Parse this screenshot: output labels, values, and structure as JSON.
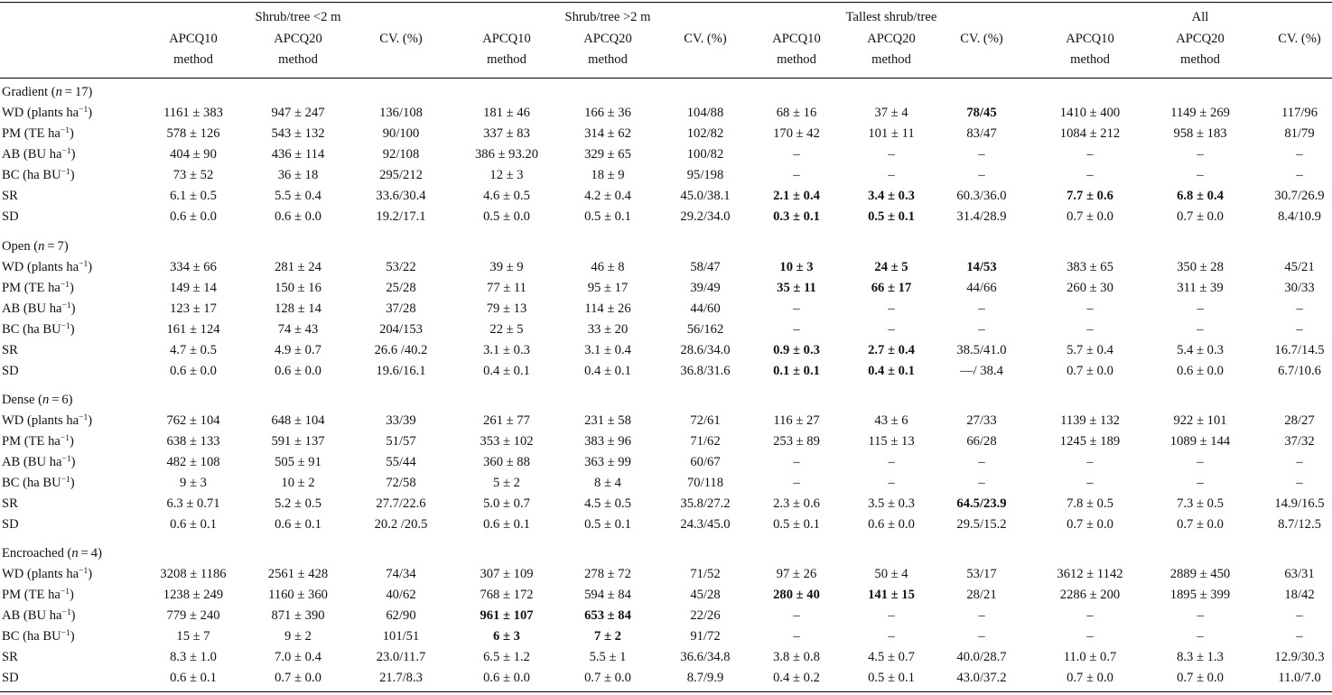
{
  "header": {
    "groups": [
      "Shrub/tree <2 m",
      "Shrub/tree >2 m",
      "Tallest shrub/tree",
      "All"
    ],
    "columns": [
      [
        "APCQ10",
        "method"
      ],
      [
        "APCQ20",
        "method"
      ],
      [
        "CV. (%)"
      ],
      [
        "APCQ10",
        "method"
      ],
      [
        "APCQ20",
        "method"
      ],
      [
        "CV. (%)"
      ],
      [
        "APCQ10",
        "method"
      ],
      [
        "APCQ20",
        "method"
      ],
      [
        "CV. (%)"
      ],
      [
        "APCQ10",
        "method"
      ],
      [
        "APCQ20",
        "method"
      ],
      [
        "CV. (%)"
      ]
    ]
  },
  "sections": [
    {
      "name": "Gradient",
      "n": "17",
      "rows": [
        {
          "label": "WD (plants ha",
          "unit_sup": "−1",
          "label_end": ")",
          "values": [
            "1161 ± 383",
            "947 ± 247",
            "136/108",
            "181 ± 46",
            "166 ± 36",
            "104/88",
            "68 ± 16",
            "37 ± 4",
            "78/45",
            "1410 ± 400",
            "1149 ± 269",
            "117/96"
          ],
          "bold": [
            8
          ]
        },
        {
          "label": "PM (TE ha",
          "unit_sup": "−1",
          "label_end": ")",
          "values": [
            "578 ± 126",
            "543 ± 132",
            "90/100",
            "337 ± 83",
            "314 ± 62",
            "102/82",
            "170 ± 42",
            "101 ± 11",
            "83/47",
            "1084 ± 212",
            "958 ± 183",
            "81/79"
          ],
          "bold": []
        },
        {
          "label": "AB (BU ha",
          "unit_sup": "−1",
          "label_end": ")",
          "values": [
            "404 ± 90",
            "436 ± 114",
            "92/108",
            "386 ± 93.20",
            "329 ± 65",
            "100/82",
            "–",
            "–",
            "–",
            "–",
            "–",
            "–"
          ],
          "bold": []
        },
        {
          "label": "BC (ha BU",
          "unit_sup": "−1",
          "label_end": ")",
          "values": [
            "73 ± 52",
            "36 ± 18",
            "295/212",
            "12 ± 3",
            "18 ± 9",
            "95/198",
            "–",
            "–",
            "–",
            "–",
            "–",
            "–"
          ],
          "bold": []
        },
        {
          "label": "SR",
          "unit_sup": "",
          "label_end": "",
          "values": [
            "6.1 ± 0.5",
            "5.5 ± 0.4",
            "33.6/30.4",
            "4.6 ± 0.5",
            "4.2 ± 0.4",
            "45.0/38.1",
            "2.1 ± 0.4",
            "3.4 ± 0.3",
            "60.3/36.0",
            "7.7 ± 0.6",
            "6.8 ± 0.4",
            "30.7/26.9"
          ],
          "bold": [
            6,
            7,
            9,
            10
          ]
        },
        {
          "label": "SD",
          "unit_sup": "",
          "label_end": "",
          "values": [
            "0.6 ± 0.0",
            "0.6 ± 0.0",
            "19.2/17.1",
            "0.5 ± 0.0",
            "0.5 ± 0.1",
            "29.2/34.0",
            "0.3 ± 0.1",
            "0.5 ± 0.1",
            "31.4/28.9",
            "0.7 ± 0.0",
            "0.7 ± 0.0",
            "8.4/10.9"
          ],
          "bold": [
            6,
            7
          ]
        }
      ]
    },
    {
      "name": "Open",
      "n": "7",
      "rows": [
        {
          "label": "WD (plants ha",
          "unit_sup": "−1",
          "label_end": ")",
          "values": [
            "334 ± 66",
            "281 ± 24",
            "53/22",
            "39 ± 9",
            "46 ± 8",
            "58/47",
            "10 ± 3",
            "24 ± 5",
            "14/53",
            "383 ± 65",
            "350 ± 28",
            "45/21"
          ],
          "bold": [
            6,
            7,
            8
          ]
        },
        {
          "label": "PM (TE ha",
          "unit_sup": "−1",
          "label_end": ")",
          "values": [
            "149 ± 14",
            "150 ± 16",
            "25/28",
            "77 ± 11",
            "95 ± 17",
            "39/49",
            "35 ± 11",
            "66 ± 17",
            "44/66",
            "260 ± 30",
            "311 ± 39",
            "30/33"
          ],
          "bold": [
            6,
            7
          ]
        },
        {
          "label": "AB (BU ha",
          "unit_sup": "−1",
          "label_end": ")",
          "values": [
            "123 ± 17",
            "128 ± 14",
            "37/28",
            "79 ± 13",
            "114 ± 26",
            "44/60",
            "–",
            "–",
            "–",
            "–",
            "–",
            "–"
          ],
          "bold": []
        },
        {
          "label": "BC (ha BU",
          "unit_sup": "−1",
          "label_end": ")",
          "values": [
            "161 ± 124",
            "74 ± 43",
            "204/153",
            "22 ± 5",
            "33 ± 20",
            "56/162",
            "–",
            "–",
            "–",
            "–",
            "–",
            "–"
          ],
          "bold": []
        },
        {
          "label": "SR",
          "unit_sup": "",
          "label_end": "",
          "values": [
            "4.7 ± 0.5",
            "4.9 ± 0.7",
            "26.6 /40.2",
            "3.1 ± 0.3",
            "3.1 ± 0.4",
            "28.6/34.0",
            "0.9 ± 0.3",
            "2.7 ± 0.4",
            "38.5/41.0",
            "5.7 ± 0.4",
            "5.4 ± 0.3",
            "16.7/14.5"
          ],
          "bold": [
            6,
            7
          ]
        },
        {
          "label": "SD",
          "unit_sup": "",
          "label_end": "",
          "values": [
            "0.6 ± 0.0",
            "0.6 ± 0.0",
            "19.6/16.1",
            "0.4 ± 0.1",
            "0.4 ± 0.1",
            "36.8/31.6",
            "0.1 ± 0.1",
            "0.4 ± 0.1",
            "—/ 38.4",
            "0.7 ± 0.0",
            "0.6 ± 0.0",
            "6.7/10.6"
          ],
          "bold": [
            6,
            7
          ]
        }
      ]
    },
    {
      "name": "Dense",
      "n": "6",
      "rows": [
        {
          "label": "WD (plants ha",
          "unit_sup": "−1",
          "label_end": ")",
          "values": [
            "762 ± 104",
            "648 ± 104",
            "33/39",
            "261 ± 77",
            "231 ± 58",
            "72/61",
            "116 ± 27",
            "43 ± 6",
            "27/33",
            "1139 ± 132",
            "922 ± 101",
            "28/27"
          ],
          "bold": []
        },
        {
          "label": "PM (TE ha",
          "unit_sup": "−1",
          "label_end": ")",
          "values": [
            "638 ± 133",
            "591 ± 137",
            "51/57",
            "353 ± 102",
            "383 ± 96",
            "71/62",
            "253 ± 89",
            "115 ± 13",
            "66/28",
            "1245 ± 189",
            "1089 ± 144",
            "37/32"
          ],
          "bold": []
        },
        {
          "label": "AB (BU ha",
          "unit_sup": "−1",
          "label_end": ")",
          "values": [
            "482 ± 108",
            "505 ± 91",
            "55/44",
            "360 ± 88",
            "363 ± 99",
            "60/67",
            "–",
            "–",
            "–",
            "–",
            "–",
            "–"
          ],
          "bold": []
        },
        {
          "label": "BC (ha BU",
          "unit_sup": "−1",
          "label_end": ")",
          "values": [
            "9 ± 3",
            "10 ± 2",
            "72/58",
            "5 ± 2",
            "8 ± 4",
            "70/118",
            "–",
            "–",
            "–",
            "–",
            "–",
            "–"
          ],
          "bold": []
        },
        {
          "label": "SR",
          "unit_sup": "",
          "label_end": "",
          "values": [
            "6.3 ± 0.71",
            "5.2 ± 0.5",
            "27.7/22.6",
            "5.0 ± 0.7",
            "4.5 ± 0.5",
            "35.8/27.2",
            "2.3 ± 0.6",
            "3.5 ± 0.3",
            "64.5/23.9",
            "7.8 ± 0.5",
            "7.3 ± 0.5",
            "14.9/16.5"
          ],
          "bold": [
            8
          ]
        },
        {
          "label": "SD",
          "unit_sup": "",
          "label_end": "",
          "values": [
            "0.6 ± 0.1",
            "0.6 ± 0.1",
            "20.2 /20.5",
            "0.6 ± 0.1",
            "0.5 ± 0.1",
            "24.3/45.0",
            "0.5 ± 0.1",
            "0.6 ± 0.0",
            "29.5/15.2",
            "0.7 ± 0.0",
            "0.7 ± 0.0",
            "8.7/12.5"
          ],
          "bold": []
        }
      ]
    },
    {
      "name": "Encroached",
      "n": "4",
      "rows": [
        {
          "label": "WD (plants ha",
          "unit_sup": "−1",
          "label_end": ")",
          "values": [
            "3208 ± 1186",
            "2561 ± 428",
            "74/34",
            "307 ± 109",
            "278 ± 72",
            "71/52",
            "97 ± 26",
            "50 ± 4",
            "53/17",
            "3612 ± 1142",
            "2889 ± 450",
            "63/31"
          ],
          "bold": []
        },
        {
          "label": "PM (TE ha",
          "unit_sup": "−1",
          "label_end": ")",
          "values": [
            "1238 ± 249",
            "1160 ± 360",
            "40/62",
            "768 ± 172",
            "594 ± 84",
            "45/28",
            "280 ± 40",
            "141 ± 15",
            "28/21",
            "2286 ± 200",
            "1895 ± 399",
            "18/42"
          ],
          "bold": [
            6,
            7
          ]
        },
        {
          "label": "AB (BU ha",
          "unit_sup": "−1",
          "label_end": ")",
          "values": [
            "779 ± 240",
            "871 ± 390",
            "62/90",
            "961 ± 107",
            "653 ± 84",
            "22/26",
            "–",
            "–",
            "–",
            "–",
            "–",
            "–"
          ],
          "bold": [
            3,
            4
          ]
        },
        {
          "label": "BC (ha BU",
          "unit_sup": "−1",
          "label_end": ")",
          "values": [
            "15 ± 7",
            "9 ± 2",
            "101/51",
            "6 ± 3",
            "7 ± 2",
            "91/72",
            "–",
            "–",
            "–",
            "–",
            "–",
            "–"
          ],
          "bold": [
            3,
            4
          ]
        },
        {
          "label": "SR",
          "unit_sup": "",
          "label_end": "",
          "values": [
            "8.3 ± 1.0",
            "7.0 ± 0.4",
            "23.0/11.7",
            "6.5 ± 1.2",
            "5.5 ± 1",
            "36.6/34.8",
            "3.8 ± 0.8",
            "4.5 ± 0.7",
            "40.0/28.7",
            "11.0 ± 0.7",
            "8.3 ± 1.3",
            "12.9/30.3"
          ],
          "bold": []
        },
        {
          "label": "SD",
          "unit_sup": "",
          "label_end": "",
          "values": [
            "0.6 ± 0.1",
            "0.7 ± 0.0",
            "21.7/8.3",
            "0.6 ± 0.0",
            "0.7 ± 0.0",
            "8.7/9.9",
            "0.4 ± 0.2",
            "0.5 ± 0.1",
            "43.0/37.2",
            "0.7 ± 0.0",
            "0.7 ± 0.0",
            "11.0/7.0"
          ],
          "bold": []
        }
      ]
    }
  ]
}
